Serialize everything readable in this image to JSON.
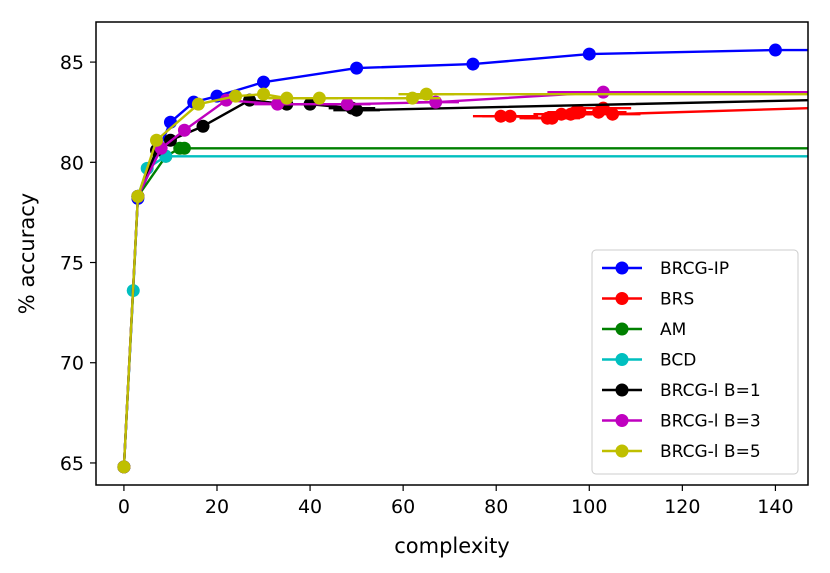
{
  "chart_data": {
    "type": "line",
    "title": "",
    "xlabel": "complexity",
    "ylabel": "% accuracy",
    "xlim": [
      -6,
      147
    ],
    "ylim": [
      63.9,
      87
    ],
    "xticks": [
      0,
      20,
      40,
      60,
      80,
      100,
      120,
      140
    ],
    "yticks": [
      65,
      70,
      75,
      80,
      85
    ],
    "grid": false,
    "legend_position": "lower-right",
    "series": [
      {
        "name": "BRCG-IP",
        "color": "#0000ff",
        "x": [
          0,
          3,
          10,
          15,
          20,
          30,
          50,
          75,
          100,
          140,
          147
        ],
        "y": [
          64.8,
          78.2,
          82.0,
          83.0,
          83.3,
          84.0,
          84.7,
          84.9,
          85.4,
          85.6,
          85.6
        ],
        "markers": [
          true,
          true,
          true,
          true,
          true,
          true,
          true,
          true,
          true,
          true,
          false
        ]
      },
      {
        "name": "BRS",
        "color": "#ff0000",
        "x": [
          81,
          83,
          91,
          92,
          94,
          96,
          97,
          98,
          102,
          103,
          105,
          147
        ],
        "y": [
          82.3,
          82.3,
          82.2,
          82.2,
          82.4,
          82.4,
          82.5,
          82.5,
          82.5,
          82.7,
          82.4,
          82.7
        ],
        "markers": [
          true,
          true,
          true,
          true,
          true,
          true,
          true,
          true,
          true,
          true,
          true,
          false
        ],
        "xerr": [
          6,
          6,
          6,
          6,
          6,
          6,
          6,
          6,
          6,
          6,
          6,
          0
        ]
      },
      {
        "name": "AM",
        "color": "#008000",
        "x": [
          0,
          3,
          9,
          12,
          13,
          147
        ],
        "y": [
          64.8,
          78.3,
          80.3,
          80.7,
          80.7,
          80.7
        ],
        "markers": [
          true,
          true,
          true,
          true,
          true,
          false
        ]
      },
      {
        "name": "BCD",
        "color": "#00bfbf",
        "x": [
          0,
          2,
          3,
          5,
          9,
          147
        ],
        "y": [
          64.8,
          73.6,
          78.3,
          79.7,
          80.3,
          80.3
        ],
        "markers": [
          true,
          true,
          true,
          true,
          true,
          false
        ]
      },
      {
        "name": "BRCG-l B=1",
        "color": "#000000",
        "x": [
          0,
          3,
          7,
          10,
          17,
          27,
          35,
          40,
          49,
          50,
          147
        ],
        "y": [
          64.8,
          78.3,
          80.6,
          81.1,
          81.8,
          83.1,
          82.9,
          82.9,
          82.7,
          82.6,
          83.1
        ],
        "markers": [
          true,
          true,
          true,
          true,
          true,
          true,
          true,
          true,
          true,
          true,
          false
        ],
        "xerr": [
          0,
          0,
          0,
          0,
          0,
          0,
          3,
          3,
          5,
          5,
          0
        ]
      },
      {
        "name": "BRCG-l B=3",
        "color": "#bf00bf",
        "x": [
          0,
          3,
          8,
          13,
          22,
          33,
          48,
          67,
          103,
          147
        ],
        "y": [
          64.8,
          78.3,
          80.7,
          81.6,
          83.1,
          82.9,
          82.9,
          83.0,
          83.5,
          83.5
        ],
        "markers": [
          true,
          true,
          true,
          true,
          true,
          true,
          true,
          true,
          true,
          false
        ],
        "xerr": [
          0,
          0,
          0,
          0,
          0,
          5,
          5,
          5,
          12,
          0
        ]
      },
      {
        "name": "BRCG-l B=5",
        "color": "#bfbf00",
        "x": [
          0,
          3,
          7,
          16,
          24,
          30,
          35,
          42,
          62,
          65,
          147
        ],
        "y": [
          64.8,
          78.3,
          81.1,
          82.9,
          83.3,
          83.4,
          83.2,
          83.2,
          83.2,
          83.4,
          83.4
        ],
        "markers": [
          true,
          true,
          true,
          true,
          true,
          true,
          true,
          true,
          true,
          true,
          false
        ],
        "xerr": [
          0,
          0,
          0,
          0,
          0,
          0,
          4,
          4,
          6,
          6,
          0
        ]
      }
    ]
  }
}
